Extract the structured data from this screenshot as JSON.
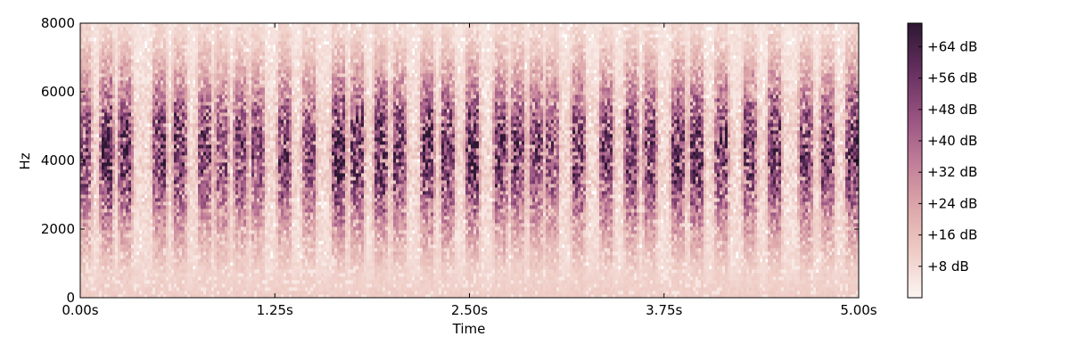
{
  "chart_data": {
    "type": "heatmap",
    "title": "",
    "xlabel": "Time",
    "ylabel": "Hz",
    "xlim": [
      0,
      5
    ],
    "ylim": [
      0,
      8000
    ],
    "x_ticks": [
      {
        "value": 0,
        "label": "0.00s"
      },
      {
        "value": 1.25,
        "label": "1.25s"
      },
      {
        "value": 2.5,
        "label": "2.50s"
      },
      {
        "value": 3.75,
        "label": "3.75s"
      },
      {
        "value": 5,
        "label": "5.00s"
      }
    ],
    "y_ticks": [
      {
        "value": 0,
        "label": "0"
      },
      {
        "value": 2000,
        "label": "2000"
      },
      {
        "value": 4000,
        "label": "4000"
      },
      {
        "value": 6000,
        "label": "6000"
      },
      {
        "value": 8000,
        "label": "8000"
      }
    ],
    "colorbar": {
      "range_db": [
        0,
        70
      ],
      "ticks": [
        {
          "value": 8,
          "label": "+8 dB"
        },
        {
          "value": 16,
          "label": "+16 dB"
        },
        {
          "value": 24,
          "label": "+24 dB"
        },
        {
          "value": 32,
          "label": "+32 dB"
        },
        {
          "value": 40,
          "label": "+40 dB"
        },
        {
          "value": 48,
          "label": "+48 dB"
        },
        {
          "value": 56,
          "label": "+56 dB"
        },
        {
          "value": 64,
          "label": "+64 dB"
        }
      ]
    },
    "colors": [
      "#fcf5f3",
      "#efccc5",
      "#dca6a9",
      "#bf7b98",
      "#95507f",
      "#632e5d",
      "#2d1733"
    ],
    "grid": false,
    "events_s": [
      0.03,
      0.17,
      0.29,
      0.51,
      0.64,
      0.8,
      0.91,
      1.03,
      1.14,
      1.31,
      1.47,
      1.66,
      1.78,
      1.93,
      2.05,
      2.23,
      2.36,
      2.52,
      2.7,
      2.81,
      2.93,
      3.03,
      3.2,
      3.38,
      3.54,
      3.66,
      3.84,
      3.96,
      4.12,
      4.3,
      4.46,
      4.66,
      4.8,
      4.96
    ],
    "event_peak_db": [
      50,
      62,
      60,
      58,
      58,
      52,
      46,
      50,
      48,
      52,
      48,
      66,
      60,
      62,
      55,
      60,
      58,
      62,
      56,
      54,
      50,
      48,
      56,
      54,
      58,
      52,
      58,
      62,
      56,
      54,
      58,
      54,
      52,
      60
    ],
    "energy_band_hz": [
      2000,
      6500
    ]
  }
}
